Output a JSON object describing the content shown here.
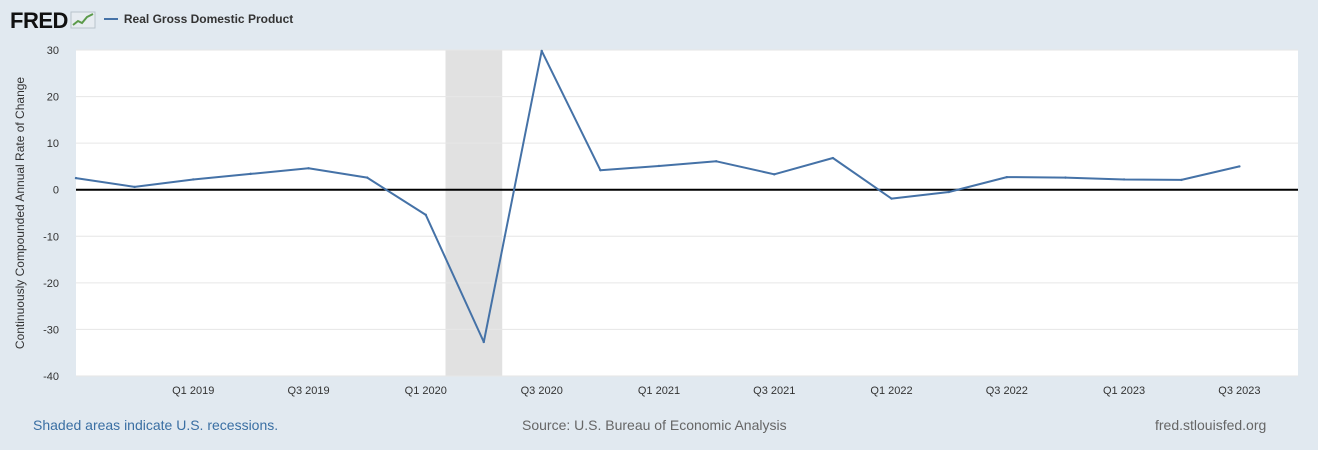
{
  "logo": {
    "text": "FRED"
  },
  "legend": {
    "label": "Real Gross Domestic Product",
    "color": "#4572a7"
  },
  "footer": {
    "left": "Shaded areas indicate U.S. recessions.",
    "center": "Source: U.S. Bureau of Economic Analysis",
    "right": "fred.stlouisfed.org"
  },
  "chart_data": {
    "type": "line",
    "ylabel": "Continuously Compounded Annual Rate of Change",
    "ylim": [
      -40,
      30
    ],
    "yticks": [
      30,
      20,
      10,
      0,
      -10,
      -20,
      -30,
      -40
    ],
    "grid": true,
    "legend_position": "top-left",
    "x_start": "2018-07-01",
    "x_end": "2023-10-01",
    "xticks": [
      {
        "date": "2019-01-01",
        "label": "Q1 2019"
      },
      {
        "date": "2019-07-01",
        "label": "Q3 2019"
      },
      {
        "date": "2020-01-01",
        "label": "Q1 2020"
      },
      {
        "date": "2020-07-01",
        "label": "Q3 2020"
      },
      {
        "date": "2021-01-01",
        "label": "Q1 2021"
      },
      {
        "date": "2021-07-01",
        "label": "Q3 2021"
      },
      {
        "date": "2022-01-01",
        "label": "Q1 2022"
      },
      {
        "date": "2022-07-01",
        "label": "Q3 2022"
      },
      {
        "date": "2023-01-01",
        "label": "Q1 2023"
      },
      {
        "date": "2023-07-01",
        "label": "Q3 2023"
      }
    ],
    "recessions": [
      {
        "start": "2020-02-01",
        "end": "2020-04-30"
      }
    ],
    "series": [
      {
        "name": "Real Gross Domestic Product",
        "color": "#4572a7",
        "x": [
          "2018-07-01",
          "2018-10-01",
          "2019-01-01",
          "2019-04-01",
          "2019-07-01",
          "2019-10-01",
          "2020-01-01",
          "2020-04-01",
          "2020-07-01",
          "2020-10-01",
          "2021-01-01",
          "2021-04-01",
          "2021-07-01",
          "2021-10-01",
          "2022-01-01",
          "2022-04-01",
          "2022-07-01",
          "2022-10-01",
          "2023-01-01",
          "2023-04-01",
          "2023-07-01"
        ],
        "values": [
          2.5,
          0.6,
          2.2,
          3.4,
          4.6,
          2.6,
          -5.4,
          -32.7,
          29.8,
          4.2,
          5.1,
          6.1,
          3.3,
          6.8,
          -1.9,
          -0.5,
          2.7,
          2.6,
          2.2,
          2.1,
          5.0
        ]
      }
    ]
  }
}
